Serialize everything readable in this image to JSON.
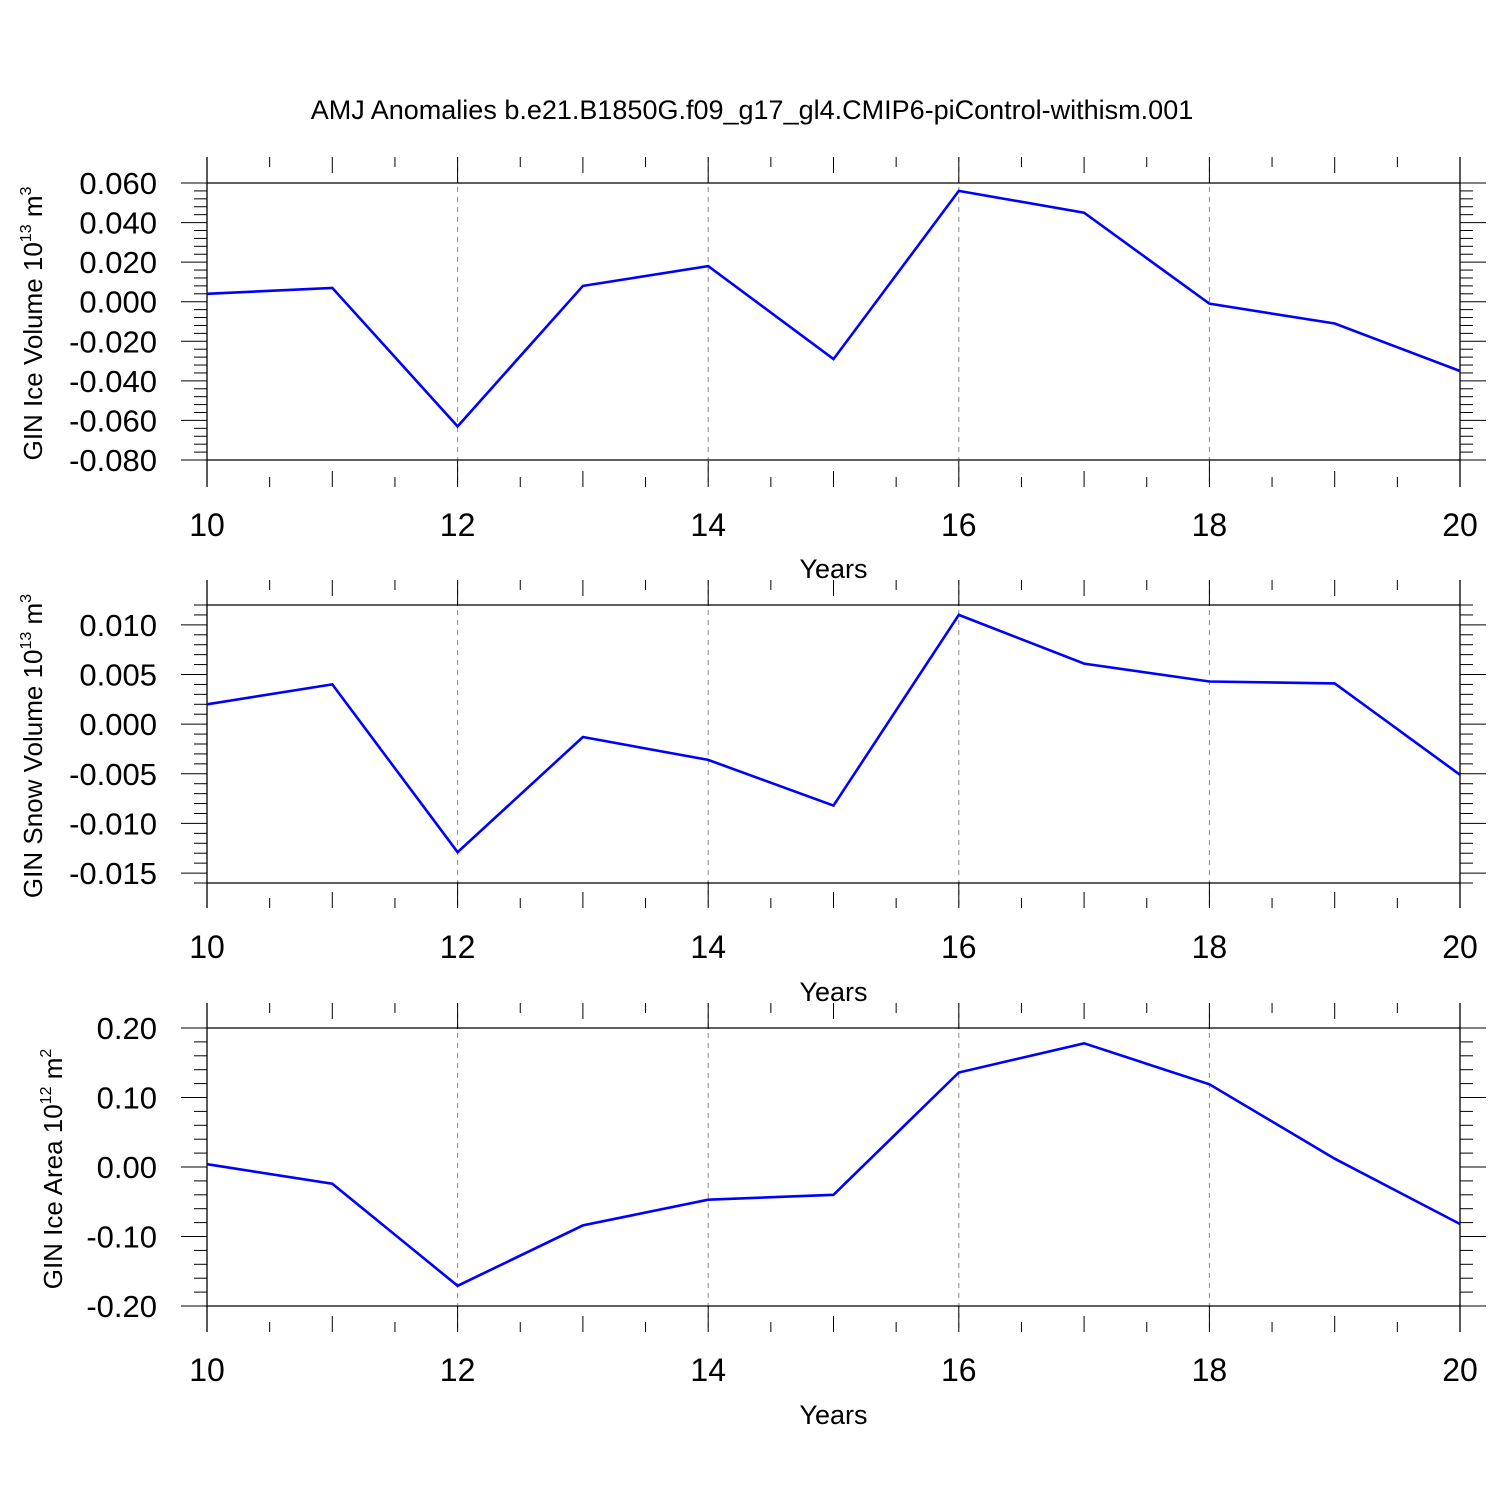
{
  "figure": {
    "title": "AMJ Anomalies b.e21.B1850G.f09_g17_gl4.CMIP6-piControl-withism.001"
  },
  "colors": {
    "line": "#0000ff",
    "axis": "#000000",
    "grid": "#888888"
  },
  "chart_data": [
    {
      "type": "line",
      "ylabel_main": "GIN Ice Volume 10",
      "ylabel_exp": "13",
      "ylabel_unit": " m",
      "ylabel_unit_exp": "3",
      "xlabel": "Years",
      "xlim": [
        10,
        20
      ],
      "ylim": [
        -0.08,
        0.06
      ],
      "x_ticks": [
        10,
        12,
        14,
        16,
        18,
        20
      ],
      "x_tick_labels": [
        "10",
        "12",
        "14",
        "16",
        "18",
        "20"
      ],
      "y_ticks": [
        -0.08,
        -0.06,
        -0.04,
        -0.02,
        0.0,
        0.02,
        0.04,
        0.06
      ],
      "y_tick_labels": [
        "-0.080",
        "-0.060",
        "-0.040",
        "-0.020",
        "0.000",
        "0.020",
        "0.040",
        "0.060"
      ],
      "grid": "vertical-dashed",
      "series": [
        {
          "x": [
            10,
            11,
            12,
            13,
            14,
            15,
            16,
            17,
            18,
            19,
            20
          ],
          "y": [
            0.004,
            0.007,
            -0.063,
            0.008,
            0.018,
            -0.029,
            0.056,
            0.045,
            -0.001,
            -0.011,
            -0.035
          ]
        }
      ]
    },
    {
      "type": "line",
      "ylabel_main": "GIN Snow Volume 10",
      "ylabel_exp": "13",
      "ylabel_unit": " m",
      "ylabel_unit_exp": "3",
      "xlabel": "Years",
      "xlim": [
        10,
        20
      ],
      "ylim": [
        -0.016,
        0.012
      ],
      "x_ticks": [
        10,
        12,
        14,
        16,
        18,
        20
      ],
      "x_tick_labels": [
        "10",
        "12",
        "14",
        "16",
        "18",
        "20"
      ],
      "y_ticks": [
        -0.015,
        -0.01,
        -0.005,
        0.0,
        0.005,
        0.01
      ],
      "y_tick_labels": [
        "-0.015",
        "-0.010",
        "-0.005",
        "0.000",
        "0.005",
        "0.010"
      ],
      "grid": "vertical-dashed",
      "series": [
        {
          "x": [
            10,
            11,
            12,
            13,
            14,
            15,
            16,
            17,
            18,
            19,
            20
          ],
          "y": [
            0.002,
            0.004,
            -0.0129,
            -0.0013,
            -0.0036,
            -0.0082,
            0.011,
            0.0061,
            0.0043,
            0.0041,
            -0.0051
          ]
        }
      ]
    },
    {
      "type": "line",
      "ylabel_main": "GIN Ice Area 10",
      "ylabel_exp": "12",
      "ylabel_unit": " m",
      "ylabel_unit_exp": "2",
      "xlabel": "Years",
      "xlim": [
        10,
        20
      ],
      "ylim": [
        -0.2,
        0.2
      ],
      "x_ticks": [
        10,
        12,
        14,
        16,
        18,
        20
      ],
      "x_tick_labels": [
        "10",
        "12",
        "14",
        "16",
        "18",
        "20"
      ],
      "y_ticks": [
        -0.2,
        -0.1,
        0.0,
        0.1,
        0.2
      ],
      "y_tick_labels": [
        "-0.20",
        "-0.10",
        "0.00",
        "0.10",
        "0.20"
      ],
      "grid": "vertical-dashed",
      "series": [
        {
          "x": [
            10,
            11,
            12,
            13,
            14,
            15,
            16,
            17,
            18,
            19,
            20
          ],
          "y": [
            0.004,
            -0.024,
            -0.171,
            -0.084,
            -0.047,
            -0.04,
            0.136,
            0.178,
            0.119,
            0.012,
            -0.082
          ]
        }
      ]
    }
  ]
}
